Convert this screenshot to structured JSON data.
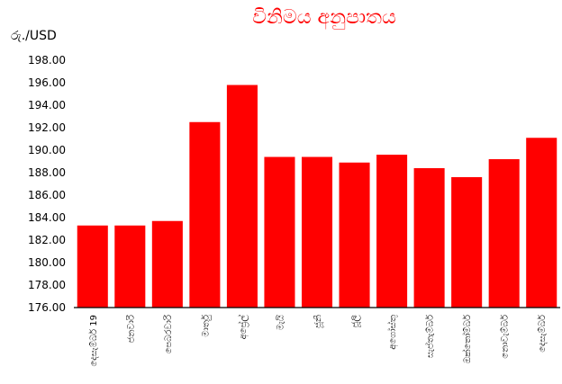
{
  "chart_data": {
    "type": "bar",
    "title": "විනිමය අනුපාතය",
    "ylabel": "රු./USD",
    "xlabel": "",
    "categories": [
      "දෙසැම්බර් 19",
      "ජනවාරි",
      "පෙබරවාරි",
      "මාර්තු",
      "අප්‍රේල්",
      "මැයි",
      "ජූනි",
      "ජූලි",
      "අගෝස්තු",
      "සැප්තැම්බර්",
      "ඔක්තෝම්බර්",
      "නොවැම්බර්",
      "දෙසැම්බර්"
    ],
    "values": [
      183.3,
      183.3,
      183.7,
      192.5,
      195.8,
      189.4,
      189.4,
      188.9,
      189.6,
      188.4,
      187.6,
      189.2,
      191.1
    ],
    "ylim": [
      176,
      198
    ],
    "yticks": [
      "176.00",
      "178.00",
      "180.00",
      "182.00",
      "184.00",
      "186.00",
      "188.00",
      "190.00",
      "192.00",
      "194.00",
      "196.00",
      "198.00"
    ],
    "grid": false,
    "legend": "none",
    "colors": {
      "bar": "#ff0000",
      "title": "#ff0000",
      "axis": "#000000"
    }
  }
}
